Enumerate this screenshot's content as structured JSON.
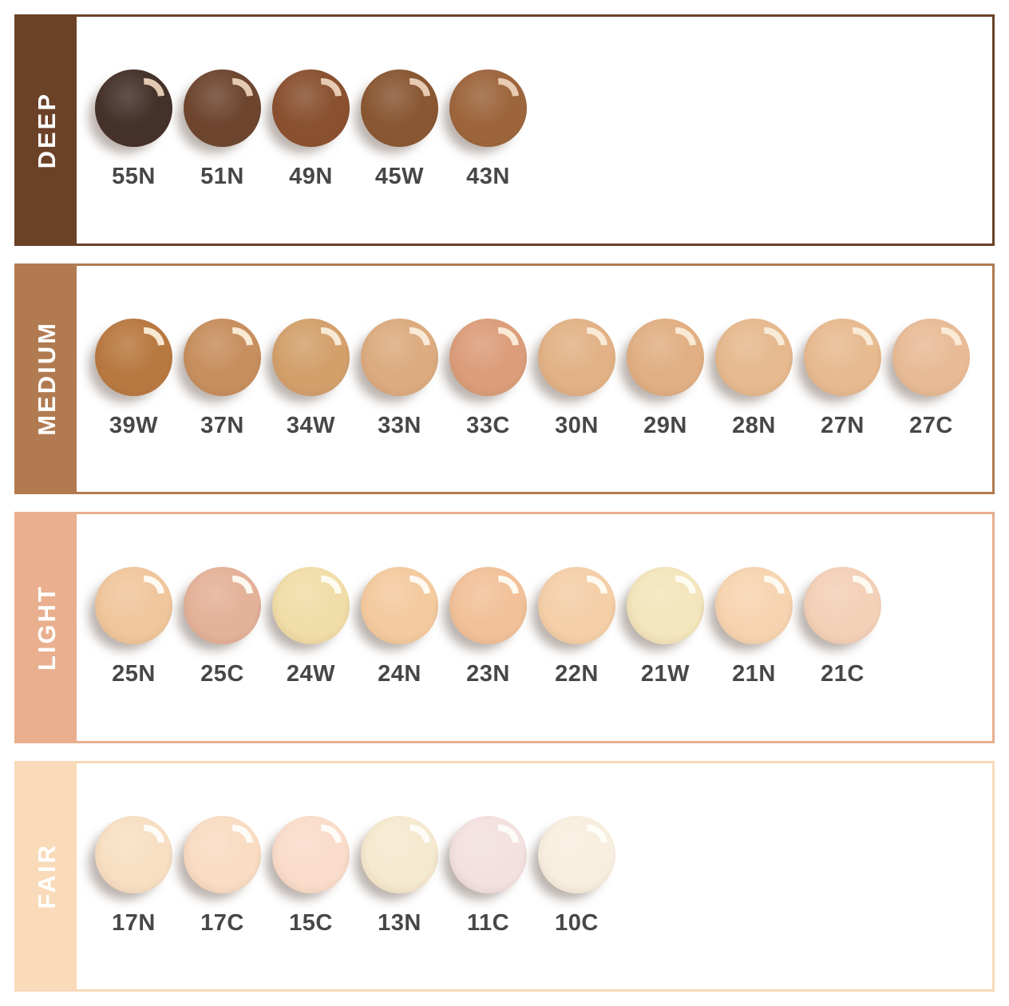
{
  "label_color": "#474747",
  "rail_text_color": "#ffffff",
  "sections": [
    {
      "id": "deep",
      "label": "DEEP",
      "theme_color": "#6b4127",
      "gloss_color": "#ecd2ba",
      "swatches": [
        {
          "label": "55N",
          "color": "#44312a"
        },
        {
          "label": "51N",
          "color": "#6e4630"
        },
        {
          "label": "49N",
          "color": "#8a5130"
        },
        {
          "label": "45W",
          "color": "#8a5733"
        },
        {
          "label": "43N",
          "color": "#9d653c"
        }
      ]
    },
    {
      "id": "medium",
      "label": "MEDIUM",
      "theme_color": "#b17a50",
      "gloss_color": "#fbeeda",
      "swatches": [
        {
          "label": "39W",
          "color": "#b87941"
        },
        {
          "label": "37N",
          "color": "#c78e5e"
        },
        {
          "label": "34W",
          "color": "#d3a06c"
        },
        {
          "label": "33N",
          "color": "#dcab7f"
        },
        {
          "label": "33C",
          "color": "#db9d7a"
        },
        {
          "label": "30N",
          "color": "#e2b286"
        },
        {
          "label": "29N",
          "color": "#e1af83"
        },
        {
          "label": "28N",
          "color": "#e6b98e"
        },
        {
          "label": "27N",
          "color": "#e7ba90"
        },
        {
          "label": "27C",
          "color": "#e8bb96"
        }
      ]
    },
    {
      "id": "light",
      "label": "LIGHT",
      "theme_color": "#e9af8e",
      "gloss_color": "#fffdf6",
      "swatches": [
        {
          "label": "25N",
          "color": "#f0c69c"
        },
        {
          "label": "25C",
          "color": "#e4b199"
        },
        {
          "label": "24W",
          "color": "#f1dda8"
        },
        {
          "label": "24N",
          "color": "#f4ca9f"
        },
        {
          "label": "23N",
          "color": "#f2c199"
        },
        {
          "label": "22N",
          "color": "#f4cfa8"
        },
        {
          "label": "21W",
          "color": "#f3e5bc"
        },
        {
          "label": "21N",
          "color": "#f7d4b0"
        },
        {
          "label": "21C",
          "color": "#f3d0b8"
        }
      ]
    },
    {
      "id": "fair",
      "label": "FAIR",
      "theme_color": "#f9dab9",
      "gloss_color": "#fffefa",
      "swatches": [
        {
          "label": "17N",
          "color": "#f8dfc3"
        },
        {
          "label": "17C",
          "color": "#f9dcc3"
        },
        {
          "label": "15C",
          "color": "#fadcca"
        },
        {
          "label": "13N",
          "color": "#f5e9cf"
        },
        {
          "label": "11C",
          "color": "#f3e1e0"
        },
        {
          "label": "10C",
          "color": "#f8eedf"
        }
      ]
    }
  ],
  "chart_data": {
    "type": "table",
    "categories": [
      "DEEP",
      "MEDIUM",
      "LIGHT",
      "FAIR"
    ],
    "rows": [
      {
        "category": "DEEP",
        "shades": [
          "55N",
          "51N",
          "49N",
          "45W",
          "43N"
        ]
      },
      {
        "category": "MEDIUM",
        "shades": [
          "39W",
          "37N",
          "34W",
          "33N",
          "33C",
          "30N",
          "29N",
          "28N",
          "27N",
          "27C"
        ]
      },
      {
        "category": "LIGHT",
        "shades": [
          "25N",
          "25C",
          "24W",
          "24N",
          "23N",
          "22N",
          "21W",
          "21N",
          "21C"
        ]
      },
      {
        "category": "FAIR",
        "shades": [
          "17N",
          "17C",
          "15C",
          "13N",
          "11C",
          "10C"
        ]
      }
    ],
    "legend_position": "left-rails",
    "grid": false
  }
}
